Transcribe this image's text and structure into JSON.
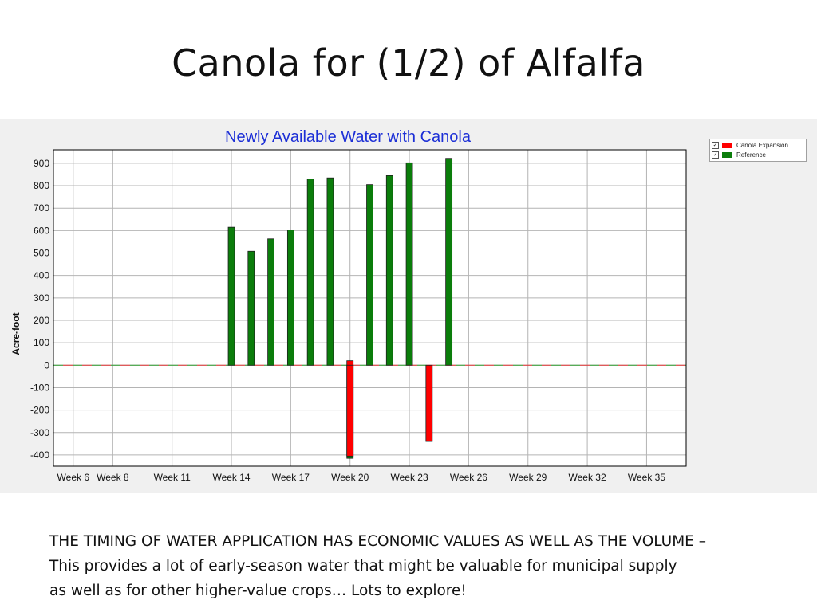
{
  "slide": {
    "title": "Canola for (1/2)  of Alfalfa",
    "caption_lines": [
      "THE TIMING OF WATER APPLICATION HAS ECONOMIC VALUES AS WELL AS THE VOLUME –",
      "This provides a lot of early-season water that might be valuable for municipal supply",
      "as well as for other higher-value crops…  Lots to explore!"
    ]
  },
  "legend": {
    "items": [
      {
        "label": "Canola Expansion",
        "color": "#ff0000",
        "checked": true
      },
      {
        "label": "Reference",
        "color": "#0b7d0b",
        "checked": true
      }
    ]
  },
  "chart_data": {
    "type": "bar",
    "title": "Newly Available Water with Canola",
    "xlabel": "",
    "ylabel": "Acre-foot",
    "ylim": [
      -450,
      960
    ],
    "yticks": [
      900,
      800,
      700,
      600,
      500,
      400,
      300,
      200,
      100,
      0,
      -100,
      -200,
      -300,
      -400
    ],
    "xlim": [
      5,
      37
    ],
    "xtick_labels": [
      {
        "week": 6,
        "label": "Week 6"
      },
      {
        "week": 8,
        "label": "Week 8"
      },
      {
        "week": 11,
        "label": "Week 11"
      },
      {
        "week": 14,
        "label": "Week 14"
      },
      {
        "week": 17,
        "label": "Week 17"
      },
      {
        "week": 20,
        "label": "Week 20"
      },
      {
        "week": 23,
        "label": "Week 23"
      },
      {
        "week": 26,
        "label": "Week 26"
      },
      {
        "week": 29,
        "label": "Week 29"
      },
      {
        "week": 32,
        "label": "Week 32"
      },
      {
        "week": 35,
        "label": "Week 35"
      }
    ],
    "grid": true,
    "legend_position": "top-right outside",
    "series": [
      {
        "name": "Reference",
        "color": "#0b7d0b",
        "points": [
          {
            "week": 14,
            "value": 615
          },
          {
            "week": 15,
            "value": 508
          },
          {
            "week": 16,
            "value": 563
          },
          {
            "week": 17,
            "value": 603
          },
          {
            "week": 18,
            "value": 830
          },
          {
            "week": 19,
            "value": 835
          },
          {
            "week": 20,
            "value": -415
          },
          {
            "week": 21,
            "value": 805
          },
          {
            "week": 22,
            "value": 845
          },
          {
            "week": 23,
            "value": 902
          },
          {
            "week": 25,
            "value": 922
          }
        ]
      },
      {
        "name": "Canola Expansion",
        "color": "#ff0000",
        "points": [
          {
            "week": 20,
            "value": 20
          },
          {
            "week": 20,
            "value": -405
          },
          {
            "week": 24,
            "value": -340
          }
        ]
      }
    ]
  }
}
